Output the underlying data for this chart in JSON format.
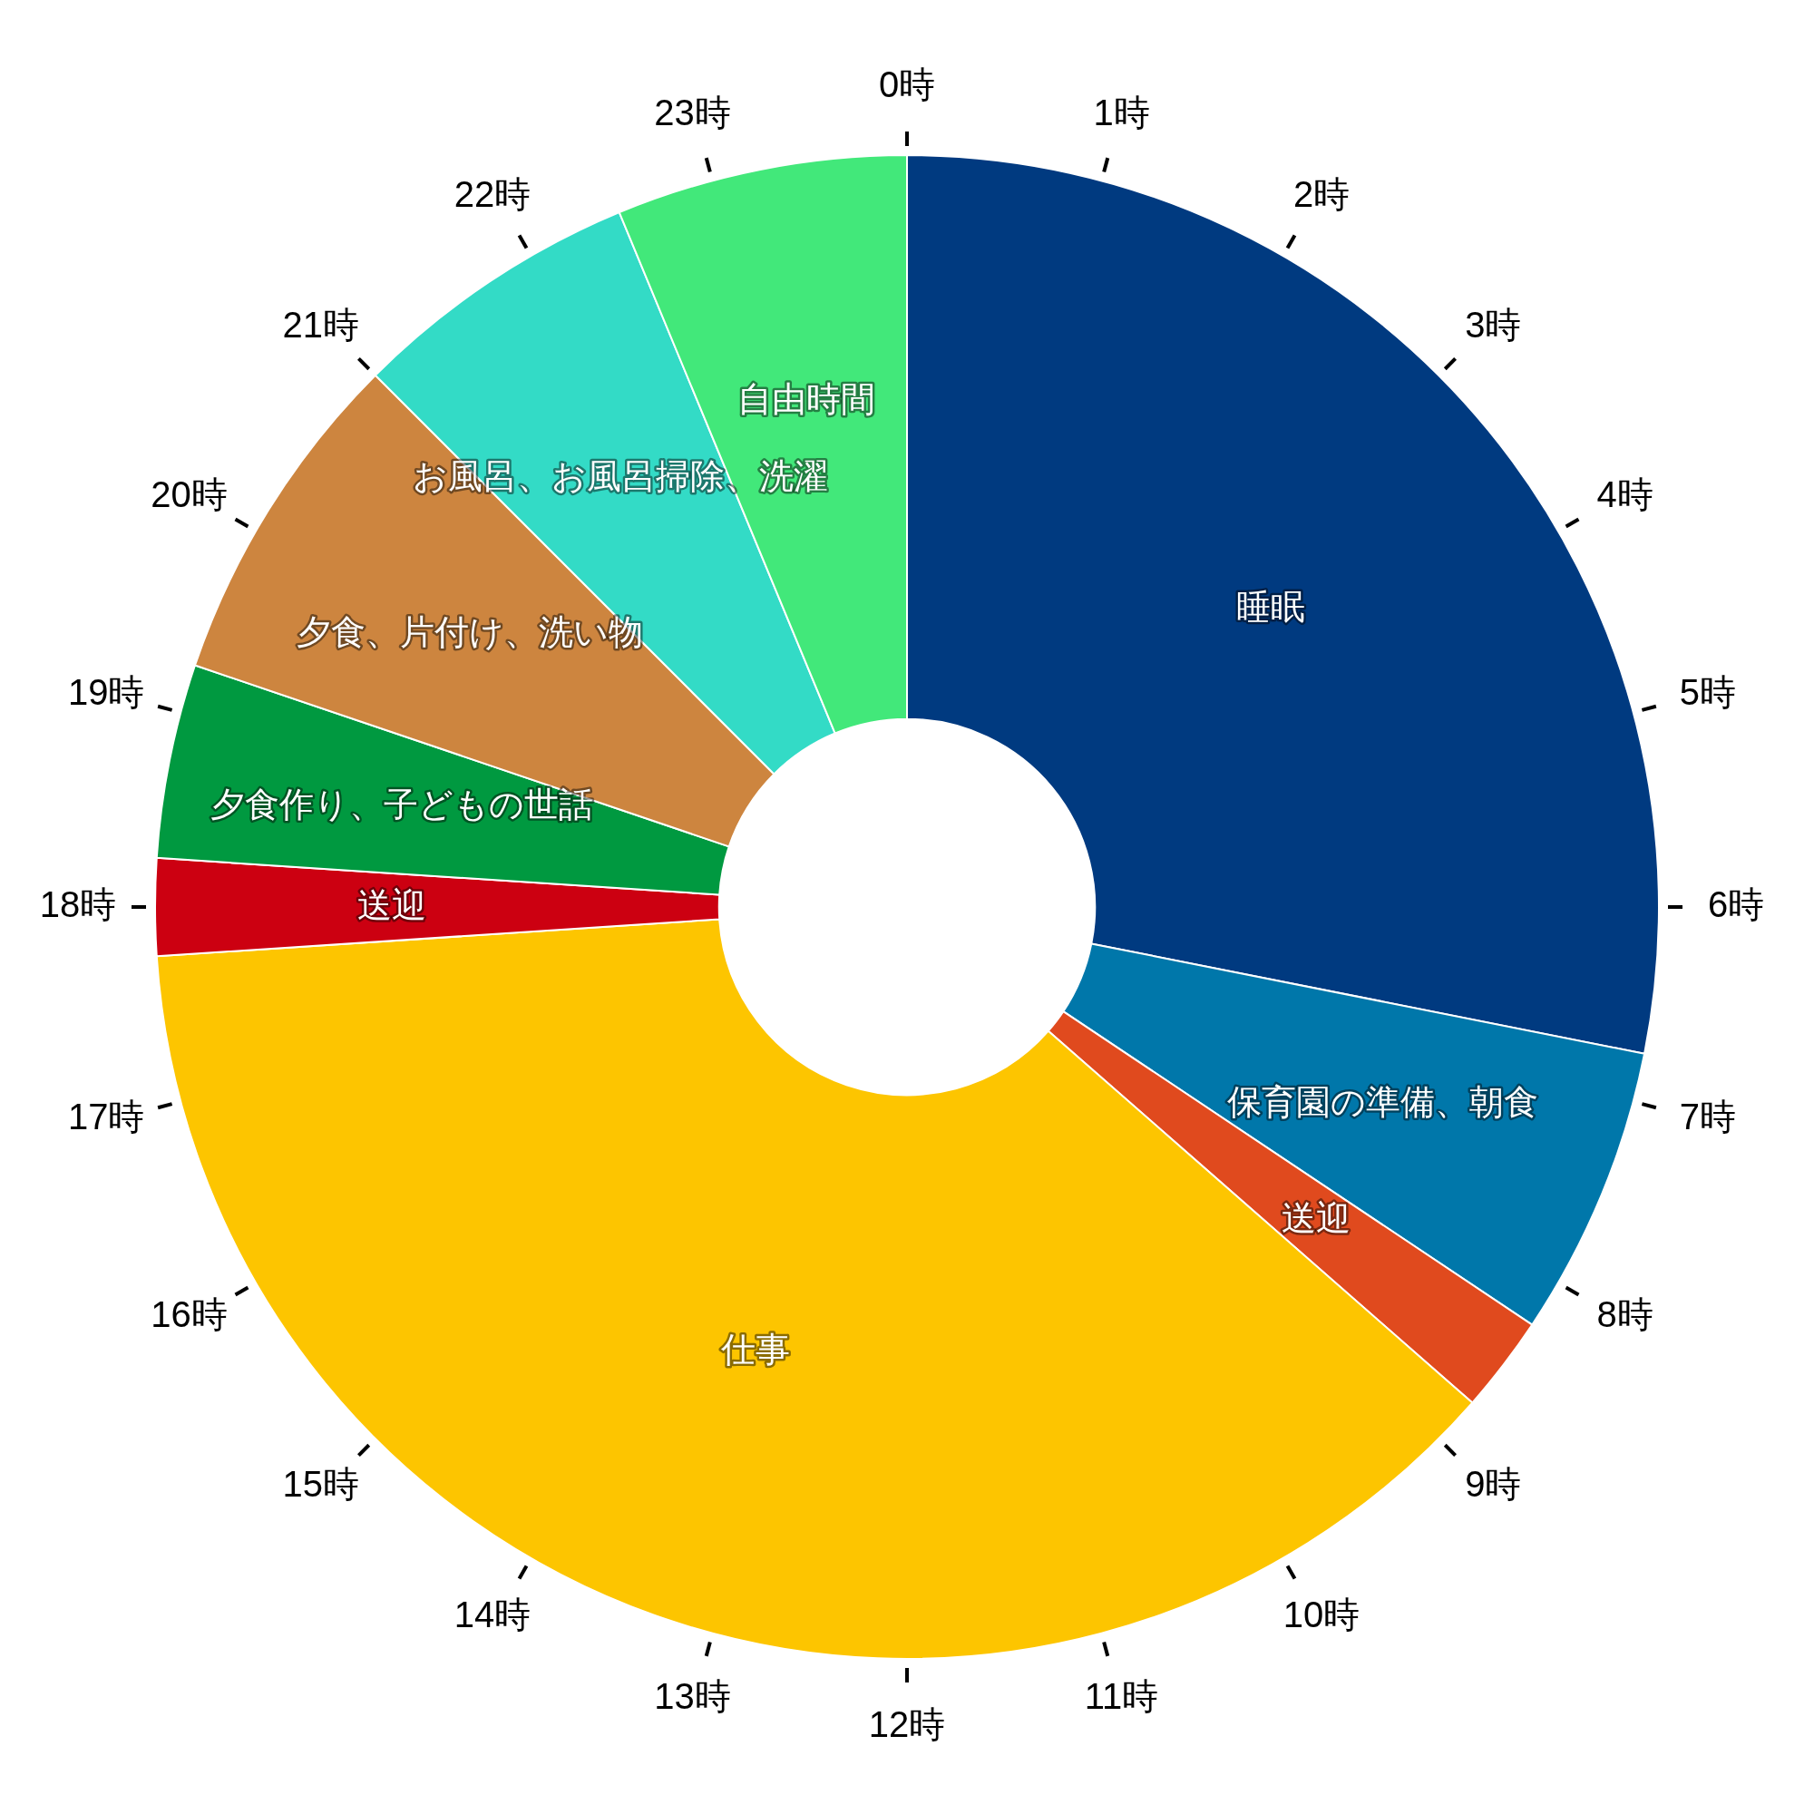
{
  "chart_data": {
    "type": "donut",
    "categories": [
      "睡眠",
      "保育園の準備、朝食",
      "送迎",
      "仕事",
      "送迎",
      "夕食作り、子どもの世話",
      "夕食、片付け、洗い物",
      "お風呂、お風呂掃除、洗濯",
      "自由時間"
    ],
    "values": [
      28.125,
      6.25,
      2.083,
      37.5,
      2.083,
      4.167,
      7.292,
      6.25,
      6.25
    ],
    "colors": [
      "#003a80",
      "#0077aa",
      "#e04a1e",
      "#fdc500",
      "#cc0011",
      "#009940",
      "#cd853f",
      "#33dbc6",
      "#42e87a"
    ],
    "annotations": [
      "0時",
      "1時",
      "2時",
      "3時",
      "4時",
      "5時",
      "6時",
      "7時",
      "8時",
      "9時",
      "10時",
      "11時",
      "12時",
      "13時",
      "14時",
      "15時",
      "16時",
      "17時",
      "18時",
      "19時",
      "20時",
      "21時",
      "22時",
      "23時"
    ],
    "legend": false
  }
}
